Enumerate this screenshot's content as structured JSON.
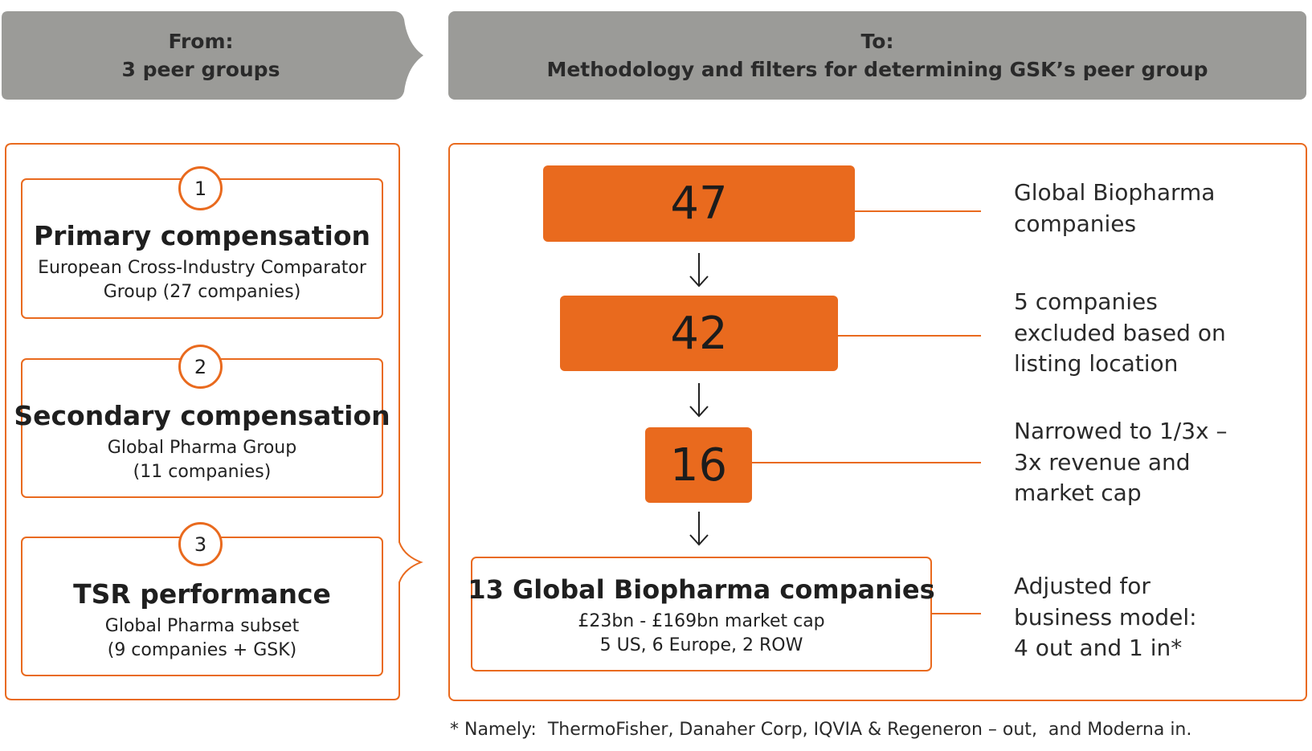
{
  "header": {
    "from": {
      "label": "From:",
      "text": "3 peer groups"
    },
    "to": {
      "label": "To:",
      "text": "Methodology and filters for determining GSK’s peer group"
    }
  },
  "peer_groups": [
    {
      "number": "1",
      "title": "Primary compensation",
      "lines": [
        "European Cross-Industry Comparator",
        "Group (27 companies)"
      ]
    },
    {
      "number": "2",
      "title": "Secondary compensation",
      "lines": [
        "Global Pharma Group",
        "(11 companies)"
      ]
    },
    {
      "number": "3",
      "title": "TSR performance",
      "lines": [
        "Global Pharma subset",
        "(9 companies + GSK)"
      ]
    }
  ],
  "funnel": [
    {
      "value": "47",
      "description": [
        "Global Biopharma",
        "companies"
      ]
    },
    {
      "value": "42",
      "description": [
        "5 companies",
        "excluded based on",
        "listing location"
      ]
    },
    {
      "value": "16",
      "description": [
        "Narrowed to 1/3x –",
        "3x revenue and",
        "market cap"
      ]
    }
  ],
  "result": {
    "title": "13 Global Biopharma companies",
    "lines": [
      "£23bn - £169bn market cap",
      "5 US, 6 Europe, 2 ROW"
    ],
    "description": [
      "Adjusted for",
      "business model:",
      "4 out and 1 in*"
    ]
  },
  "footnote": "* Namely:  ThermoFisher, Danaher Corp, IQVIA & Regeneron – out,  and Moderna in.",
  "colors": {
    "accent": "#e96a1e",
    "header_gray": "#9b9b98"
  }
}
